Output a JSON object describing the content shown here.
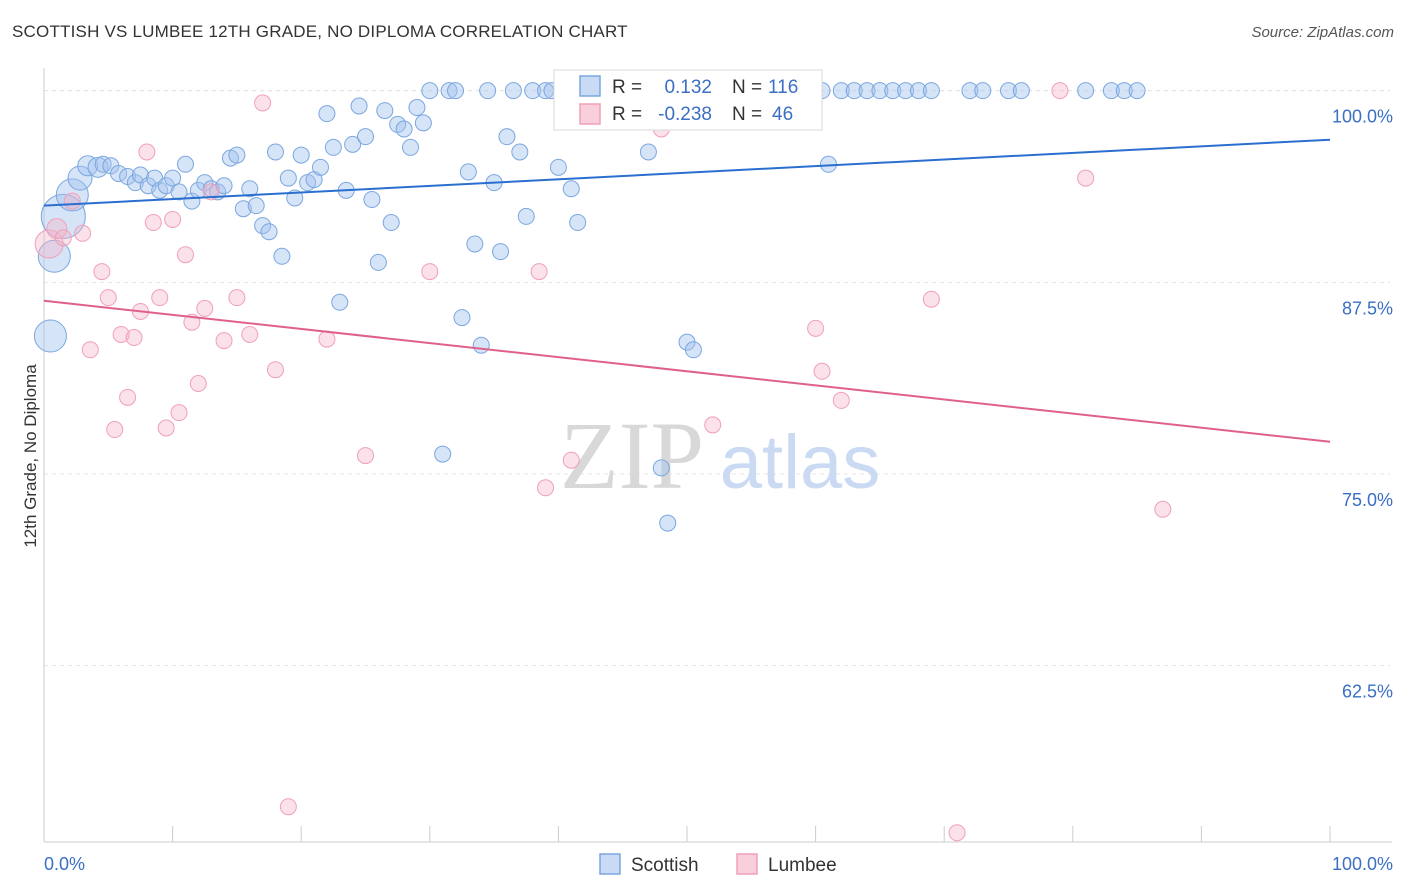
{
  "header": {
    "title": "SCOTTISH VS LUMBEE 12TH GRADE, NO DIPLOMA CORRELATION CHART",
    "source": "Source: ZipAtlas.com"
  },
  "watermark": {
    "zip": "ZIP",
    "atlas": "atlas"
  },
  "stats_box": {
    "r_label": "R =",
    "n_label": "N =",
    "rows": [
      {
        "r": "0.132",
        "n": "116",
        "color": "#7ba7e0"
      },
      {
        "r": "-0.238",
        "n": "46",
        "color": "#f0a0b8"
      }
    ]
  },
  "chart_data": {
    "type": "scatter",
    "title": "SCOTTISH VS LUMBEE 12TH GRADE, NO DIPLOMA CORRELATION CHART",
    "ylabel": "12th Grade, No Diploma",
    "xlim": [
      0,
      100
    ],
    "ylim": [
      51,
      102
    ],
    "x_tick_labels": [
      "0.0%",
      "100.0%"
    ],
    "y_ticks": [
      62.5,
      75.0,
      87.5,
      100.0
    ],
    "y_tick_labels": [
      "62.5%",
      "75.0%",
      "87.5%",
      "100.0%"
    ],
    "grid": true,
    "legend": "bottom-center",
    "series": [
      {
        "name": "Scottish",
        "color": "#7ba7e0",
        "trend": [
          [
            0,
            92.5
          ],
          [
            100,
            96.8
          ]
        ],
        "points": [
          [
            0.5,
            84,
            16
          ],
          [
            0.8,
            89.2,
            16
          ],
          [
            1.5,
            91.8,
            22
          ],
          [
            2.2,
            93.2,
            16
          ],
          [
            2.8,
            94.3,
            12
          ],
          [
            3.4,
            95.1,
            10
          ],
          [
            4.2,
            95.0,
            10
          ],
          [
            4.6,
            95.2,
            8
          ],
          [
            5.2,
            95.1,
            8
          ],
          [
            5.8,
            94.6,
            8
          ],
          [
            6.5,
            94.4,
            8
          ],
          [
            7.1,
            94.0,
            8
          ],
          [
            7.5,
            94.5,
            8
          ],
          [
            8.1,
            93.8,
            8
          ],
          [
            8.6,
            94.3,
            8
          ],
          [
            9.0,
            93.5,
            8
          ],
          [
            9.5,
            93.8,
            8
          ],
          [
            10.0,
            94.3,
            8
          ],
          [
            10.5,
            93.4,
            8
          ],
          [
            11.0,
            95.2,
            8
          ],
          [
            11.5,
            92.8,
            8
          ],
          [
            12.0,
            93.5,
            8
          ],
          [
            12.5,
            94.0,
            8
          ],
          [
            13.0,
            93.6,
            8
          ],
          [
            13.5,
            93.4,
            8
          ],
          [
            14.0,
            93.8,
            8
          ],
          [
            14.5,
            95.6,
            8
          ],
          [
            15.0,
            95.8,
            8
          ],
          [
            15.5,
            92.3,
            8
          ],
          [
            16.0,
            93.6,
            8
          ],
          [
            16.5,
            92.5,
            8
          ],
          [
            17.0,
            91.2,
            8
          ],
          [
            17.5,
            90.8,
            8
          ],
          [
            18.0,
            96.0,
            8
          ],
          [
            18.5,
            89.2,
            8
          ],
          [
            19.0,
            94.3,
            8
          ],
          [
            19.5,
            93.0,
            8
          ],
          [
            20.0,
            95.8,
            8
          ],
          [
            20.5,
            94.0,
            8
          ],
          [
            21.0,
            94.2,
            8
          ],
          [
            21.5,
            95.0,
            8
          ],
          [
            22.0,
            98.5,
            8
          ],
          [
            22.5,
            96.3,
            8
          ],
          [
            23.0,
            86.2,
            8
          ],
          [
            23.5,
            93.5,
            8
          ],
          [
            24.0,
            96.5,
            8
          ],
          [
            24.5,
            99.0,
            8
          ],
          [
            25.0,
            97.0,
            8
          ],
          [
            25.5,
            92.9,
            8
          ],
          [
            26.0,
            88.8,
            8
          ],
          [
            26.5,
            98.7,
            8
          ],
          [
            27.0,
            91.4,
            8
          ],
          [
            27.5,
            97.8,
            8
          ],
          [
            28.0,
            97.5,
            8
          ],
          [
            28.5,
            96.3,
            8
          ],
          [
            29.0,
            98.9,
            8
          ],
          [
            29.5,
            97.9,
            8
          ],
          [
            30.0,
            100,
            8
          ],
          [
            31.0,
            76.3,
            8
          ],
          [
            31.5,
            100,
            8
          ],
          [
            32.0,
            100,
            8
          ],
          [
            32.5,
            85.2,
            8
          ],
          [
            33.0,
            94.7,
            8
          ],
          [
            33.5,
            90.0,
            8
          ],
          [
            34.0,
            83.4,
            8
          ],
          [
            34.5,
            100,
            8
          ],
          [
            35.0,
            94.0,
            8
          ],
          [
            35.5,
            89.5,
            8
          ],
          [
            36.0,
            97.0,
            8
          ],
          [
            36.5,
            100,
            8
          ],
          [
            37.0,
            96.0,
            8
          ],
          [
            37.5,
            91.8,
            8
          ],
          [
            38.0,
            100,
            8
          ],
          [
            39.0,
            100,
            8
          ],
          [
            39.5,
            100,
            8
          ],
          [
            40.0,
            95.0,
            8
          ],
          [
            41.0,
            93.6,
            8
          ],
          [
            41.5,
            91.4,
            8
          ],
          [
            42.0,
            100,
            8
          ],
          [
            43.0,
            100,
            8
          ],
          [
            44.0,
            100,
            8
          ],
          [
            45.0,
            100,
            8
          ],
          [
            46.5,
            100,
            8
          ],
          [
            47.0,
            96.0,
            8
          ],
          [
            47.5,
            100,
            8
          ],
          [
            48.0,
            75.4,
            8
          ],
          [
            48.5,
            71.8,
            8
          ],
          [
            50.0,
            83.6,
            8
          ],
          [
            50.5,
            83.1,
            8
          ],
          [
            51.0,
            100,
            8
          ],
          [
            52.0,
            100,
            8
          ],
          [
            53.0,
            100,
            8
          ],
          [
            54.0,
            100,
            8
          ],
          [
            55.0,
            100,
            8
          ],
          [
            56.0,
            100,
            8
          ],
          [
            57.0,
            100,
            8
          ],
          [
            58.0,
            100,
            8
          ],
          [
            59.0,
            100,
            8
          ],
          [
            60.5,
            100,
            8
          ],
          [
            61.0,
            95.2,
            8
          ],
          [
            62.0,
            100,
            8
          ],
          [
            63.0,
            100,
            8
          ],
          [
            64.0,
            100,
            8
          ],
          [
            65.0,
            100,
            8
          ],
          [
            66.0,
            100,
            8
          ],
          [
            67.0,
            100,
            8
          ],
          [
            68.0,
            100,
            8
          ],
          [
            69.0,
            100,
            8
          ],
          [
            72.0,
            100,
            8
          ],
          [
            73.0,
            100,
            8
          ],
          [
            75.0,
            100,
            8
          ],
          [
            76.0,
            100,
            8
          ],
          [
            81.0,
            100,
            8
          ],
          [
            83.0,
            100,
            8
          ],
          [
            84.0,
            100,
            8
          ],
          [
            85.0,
            100,
            8
          ]
        ]
      },
      {
        "name": "Lumbee",
        "color": "#f0a0b8",
        "trend": [
          [
            0,
            86.3
          ],
          [
            100,
            77.1
          ]
        ],
        "points": [
          [
            0.4,
            90.0,
            14
          ],
          [
            1.0,
            91.0,
            10
          ],
          [
            1.5,
            90.4,
            8
          ],
          [
            2.2,
            92.8,
            8
          ],
          [
            3.0,
            90.7,
            8
          ],
          [
            3.6,
            83.1,
            8
          ],
          [
            4.5,
            88.2,
            8
          ],
          [
            5.0,
            86.5,
            8
          ],
          [
            5.5,
            77.9,
            8
          ],
          [
            6.0,
            84.1,
            8
          ],
          [
            6.5,
            80.0,
            8
          ],
          [
            7.0,
            83.9,
            8
          ],
          [
            7.5,
            85.6,
            8
          ],
          [
            8.0,
            96.0,
            8
          ],
          [
            8.5,
            91.4,
            8
          ],
          [
            9.0,
            86.5,
            8
          ],
          [
            9.5,
            78.0,
            8
          ],
          [
            10.0,
            91.6,
            8
          ],
          [
            10.5,
            79.0,
            8
          ],
          [
            11.0,
            89.3,
            8
          ],
          [
            11.5,
            84.9,
            8
          ],
          [
            12.0,
            80.9,
            8
          ],
          [
            12.5,
            85.8,
            8
          ],
          [
            13.0,
            93.4,
            8
          ],
          [
            14.0,
            83.7,
            8
          ],
          [
            15.0,
            86.5,
            8
          ],
          [
            16.0,
            84.1,
            8
          ],
          [
            17.0,
            99.2,
            8
          ],
          [
            18.0,
            81.8,
            8
          ],
          [
            19.0,
            53.3,
            8
          ],
          [
            22.0,
            83.8,
            8
          ],
          [
            25.0,
            76.2,
            8
          ],
          [
            30.0,
            88.2,
            8
          ],
          [
            38.5,
            88.2,
            8
          ],
          [
            39.0,
            74.1,
            8
          ],
          [
            41.0,
            75.9,
            8
          ],
          [
            48.0,
            97.5,
            8
          ],
          [
            52.0,
            78.2,
            8
          ],
          [
            60.0,
            84.5,
            8
          ],
          [
            60.5,
            81.7,
            8
          ],
          [
            62.0,
            79.8,
            8
          ],
          [
            69.0,
            86.4,
            8
          ],
          [
            71.0,
            51.6,
            8
          ],
          [
            79.0,
            100,
            8
          ],
          [
            81.0,
            94.3,
            8
          ],
          [
            87.0,
            72.7,
            8
          ]
        ]
      }
    ]
  },
  "legend": {
    "items": [
      {
        "label": "Scottish",
        "color": "#7ba7e0"
      },
      {
        "label": "Lumbee",
        "color": "#f0a0b8"
      }
    ]
  }
}
